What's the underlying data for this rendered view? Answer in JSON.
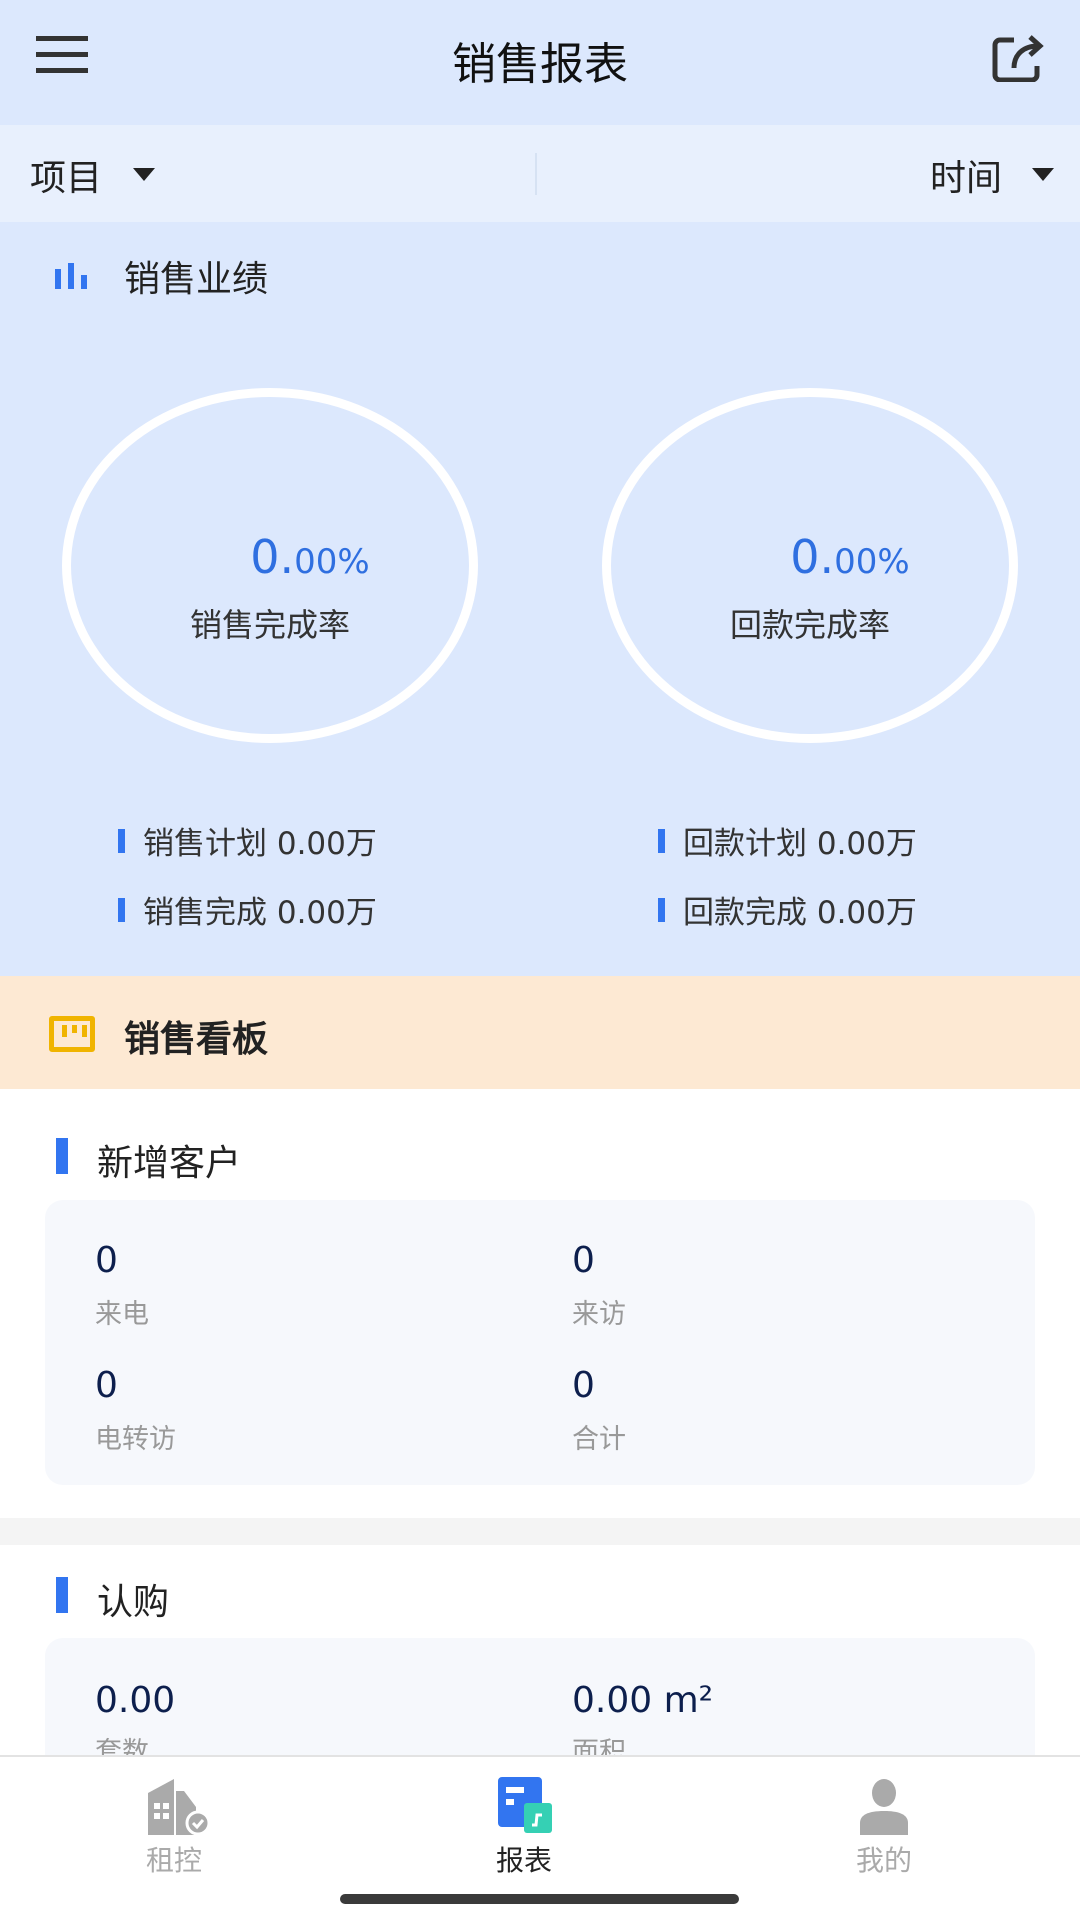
{
  "header": {
    "title": "销售报表",
    "menu_icon": "hamburger-icon",
    "share_icon": "share-icon"
  },
  "filter": {
    "project": "项目",
    "time": "时间"
  },
  "performance": {
    "title": "销售业绩",
    "sales_rate": {
      "int": "0.",
      "dec": "00%",
      "label": "销售完成率"
    },
    "payment_rate": {
      "int": "0.",
      "dec": "00%",
      "label": "回款完成率"
    },
    "stats": [
      "销售计划 0.00万",
      "销售完成 0.00万",
      "回款计划 0.00万",
      "回款完成 0.00万"
    ],
    "accent": "#3275f0"
  },
  "board": {
    "title": "销售看板",
    "background": "#fde9d3"
  },
  "new_customers": {
    "title": "新增客户",
    "items": [
      {
        "value": "0",
        "label": "来电"
      },
      {
        "value": "0",
        "label": "来访"
      },
      {
        "value": "0",
        "label": "电转访"
      },
      {
        "value": "0",
        "label": "合计"
      }
    ]
  },
  "subscription": {
    "title": "认购",
    "items": [
      {
        "value": "0.00",
        "label": "套数"
      },
      {
        "value": "0.00 m²",
        "label": "面积"
      }
    ]
  },
  "tabbar": {
    "items": [
      {
        "label": "租控",
        "icon": "building-icon",
        "active": false
      },
      {
        "label": "报表",
        "icon": "report-icon",
        "active": true
      },
      {
        "label": "我的",
        "icon": "user-icon",
        "active": false
      }
    ]
  }
}
